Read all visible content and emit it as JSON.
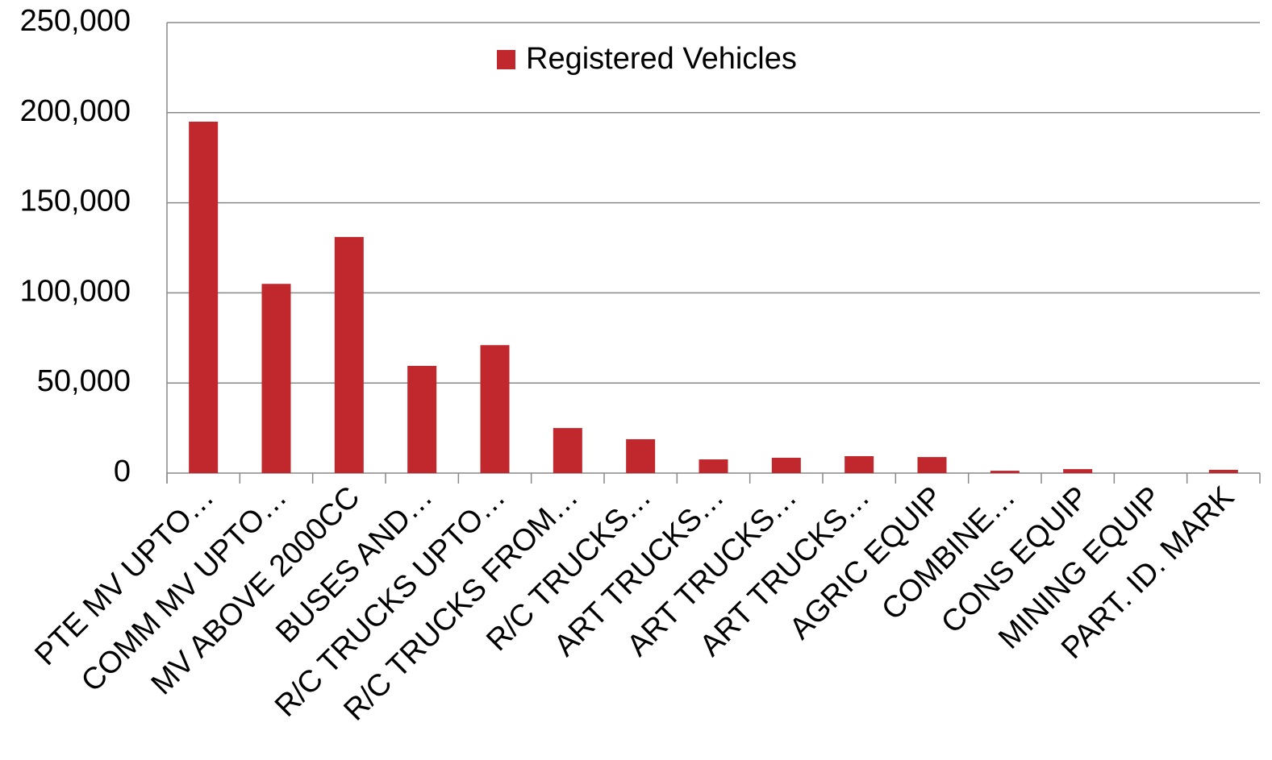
{
  "chart_data": {
    "type": "bar",
    "categories": [
      "PTE MV UPTO…",
      "COMM MV UPTO…",
      "MV ABOVE 2000CC",
      "BUSES AND…",
      "R/C TRUCKS UPTO…",
      "R/C TRUCKS FROM…",
      "R/C TRUCKS…",
      "ART TRUCKS…",
      "ART TRUCKS…",
      "ART TRUCKS…",
      "AGRIC EQUIP",
      "COMBINE…",
      "CONS EQUIP",
      "MINING EQUIP",
      "PART. ID. MARK"
    ],
    "series": [
      {
        "name": "Registered Vehicles",
        "color": "#c0282e",
        "values": [
          195000,
          105000,
          131000,
          59500,
          71000,
          25000,
          18800,
          7600,
          8500,
          9400,
          8900,
          1300,
          2200,
          0,
          1800
        ]
      }
    ],
    "ylim": [
      0,
      250000
    ],
    "yticks": [
      {
        "value": 0,
        "label": "0"
      },
      {
        "value": 50000,
        "label": "50,000"
      },
      {
        "value": 100000,
        "label": "100,000"
      },
      {
        "value": 150000,
        "label": "150,000"
      },
      {
        "value": 200000,
        "label": "200,000"
      },
      {
        "value": 250000,
        "label": "250,000"
      }
    ],
    "grid": true,
    "legend": "top"
  }
}
